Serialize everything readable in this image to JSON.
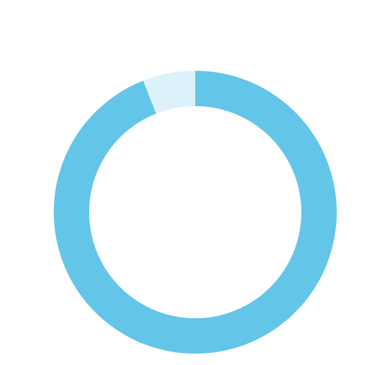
{
  "chart_data": {
    "type": "pie",
    "variant": "donut",
    "start_angle": "top",
    "direction": "clockwise",
    "slices": [
      {
        "label": "",
        "value": 94,
        "color": "#63c6e8"
      },
      {
        "label": "",
        "value": 6,
        "color": "#dcf1fa"
      }
    ],
    "center_value": "",
    "center_subtitle_lines": [
      "",
      ""
    ]
  }
}
